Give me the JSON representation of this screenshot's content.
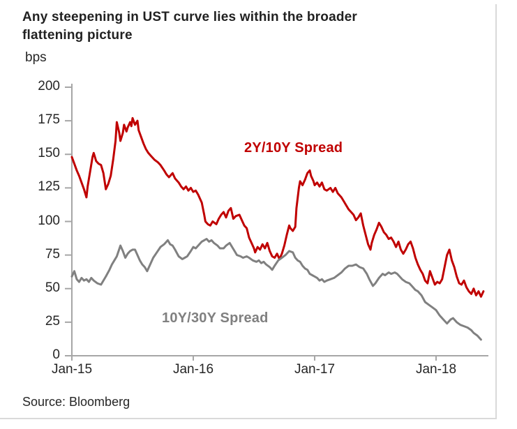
{
  "header": {
    "title_line1": "Any steepening in UST curve lies within the broader",
    "title_line2": "flattening picture"
  },
  "footer": {
    "source": "Source: Bloomberg"
  },
  "colors": {
    "red_series": "#c00000",
    "gray_series": "#808080",
    "axis": "#a6a6a6",
    "frame_border": "#d9d9d9",
    "text": "#262626"
  },
  "chart_data": {
    "type": "line",
    "title": "Any steepening in UST curve lies within the broader flattening picture",
    "xlabel": "",
    "ylabel": "bps",
    "ylim": [
      0,
      200
    ],
    "ytick_step": 25,
    "yticks": [
      "200",
      "175",
      "150",
      "125",
      "100",
      "75",
      "50",
      "25",
      "0"
    ],
    "xticks": [
      {
        "label": "Jan-15",
        "t": 0
      },
      {
        "label": "Jan-16",
        "t": 1
      },
      {
        "label": "Jan-17",
        "t": 2
      },
      {
        "label": "Jan-18",
        "t": 3
      }
    ],
    "x_unit": "years since Jan-2015",
    "xlim": [
      0,
      3.45
    ],
    "grid": false,
    "legend_position": "inline-annotations",
    "series": [
      {
        "name": "2Y/10Y Spread",
        "color": "#c00000",
        "points": [
          [
            0,
            148
          ],
          [
            0.02,
            143
          ],
          [
            0.04,
            138
          ],
          [
            0.06,
            134
          ],
          [
            0.08,
            129
          ],
          [
            0.1,
            124
          ],
          [
            0.12,
            118
          ],
          [
            0.13,
            126
          ],
          [
            0.15,
            137
          ],
          [
            0.17,
            148
          ],
          [
            0.18,
            151
          ],
          [
            0.2,
            145
          ],
          [
            0.22,
            143
          ],
          [
            0.24,
            142
          ],
          [
            0.26,
            136
          ],
          [
            0.28,
            124
          ],
          [
            0.3,
            128
          ],
          [
            0.32,
            134
          ],
          [
            0.34,
            146
          ],
          [
            0.36,
            160
          ],
          [
            0.37,
            174
          ],
          [
            0.39,
            166
          ],
          [
            0.4,
            160
          ],
          [
            0.42,
            166
          ],
          [
            0.43,
            172
          ],
          [
            0.45,
            167
          ],
          [
            0.46,
            170
          ],
          [
            0.48,
            174
          ],
          [
            0.49,
            171
          ],
          [
            0.5,
            177
          ],
          [
            0.52,
            172
          ],
          [
            0.54,
            175
          ],
          [
            0.55,
            168
          ],
          [
            0.57,
            163
          ],
          [
            0.59,
            158
          ],
          [
            0.61,
            154
          ],
          [
            0.63,
            151
          ],
          [
            0.65,
            149
          ],
          [
            0.68,
            146
          ],
          [
            0.71,
            144
          ],
          [
            0.73,
            142
          ],
          [
            0.76,
            138
          ],
          [
            0.78,
            135
          ],
          [
            0.8,
            133
          ],
          [
            0.83,
            136
          ],
          [
            0.85,
            132
          ],
          [
            0.88,
            129
          ],
          [
            0.9,
            126
          ],
          [
            0.92,
            124
          ],
          [
            0.94,
            126
          ],
          [
            0.96,
            123
          ],
          [
            0.98,
            125
          ],
          [
            1,
            122
          ],
          [
            1.02,
            123
          ],
          [
            1.04,
            120
          ],
          [
            1.07,
            114
          ],
          [
            1.09,
            105
          ],
          [
            1.1,
            100
          ],
          [
            1.12,
            98
          ],
          [
            1.14,
            97
          ],
          [
            1.16,
            100
          ],
          [
            1.19,
            98
          ],
          [
            1.21,
            102
          ],
          [
            1.23,
            105
          ],
          [
            1.25,
            107
          ],
          [
            1.27,
            103
          ],
          [
            1.29,
            108
          ],
          [
            1.31,
            110
          ],
          [
            1.33,
            102
          ],
          [
            1.35,
            104
          ],
          [
            1.38,
            105
          ],
          [
            1.4,
            101
          ],
          [
            1.42,
            97
          ],
          [
            1.44,
            95
          ],
          [
            1.46,
            88
          ],
          [
            1.48,
            84
          ],
          [
            1.5,
            80
          ],
          [
            1.51,
            77
          ],
          [
            1.53,
            81
          ],
          [
            1.55,
            79
          ],
          [
            1.57,
            83
          ],
          [
            1.59,
            80
          ],
          [
            1.61,
            84
          ],
          [
            1.63,
            78
          ],
          [
            1.65,
            74
          ],
          [
            1.67,
            73
          ],
          [
            1.69,
            76
          ],
          [
            1.71,
            72
          ],
          [
            1.73,
            76
          ],
          [
            1.75,
            82
          ],
          [
            1.77,
            90
          ],
          [
            1.79,
            97
          ],
          [
            1.8,
            95
          ],
          [
            1.82,
            93
          ],
          [
            1.84,
            96
          ],
          [
            1.85,
            110
          ],
          [
            1.87,
            125
          ],
          [
            1.88,
            130
          ],
          [
            1.9,
            127
          ],
          [
            1.92,
            131
          ],
          [
            1.94,
            136
          ],
          [
            1.96,
            138
          ],
          [
            1.97,
            134
          ],
          [
            1.99,
            130
          ],
          [
            2,
            127
          ],
          [
            2.02,
            129
          ],
          [
            2.04,
            126
          ],
          [
            2.06,
            129
          ],
          [
            2.08,
            124
          ],
          [
            2.1,
            123
          ],
          [
            2.13,
            125
          ],
          [
            2.15,
            122
          ],
          [
            2.17,
            125
          ],
          [
            2.19,
            121
          ],
          [
            2.22,
            118
          ],
          [
            2.24,
            115
          ],
          [
            2.26,
            112
          ],
          [
            2.28,
            109
          ],
          [
            2.3,
            107
          ],
          [
            2.32,
            105
          ],
          [
            2.34,
            101
          ],
          [
            2.36,
            103
          ],
          [
            2.38,
            106
          ],
          [
            2.4,
            97
          ],
          [
            2.42,
            90
          ],
          [
            2.44,
            83
          ],
          [
            2.46,
            79
          ],
          [
            2.47,
            84
          ],
          [
            2.49,
            90
          ],
          [
            2.51,
            94
          ],
          [
            2.53,
            99
          ],
          [
            2.55,
            96
          ],
          [
            2.57,
            92
          ],
          [
            2.59,
            90
          ],
          [
            2.61,
            87
          ],
          [
            2.63,
            88
          ],
          [
            2.65,
            85
          ],
          [
            2.67,
            81
          ],
          [
            2.69,
            85
          ],
          [
            2.71,
            79
          ],
          [
            2.73,
            76
          ],
          [
            2.75,
            79
          ],
          [
            2.77,
            83
          ],
          [
            2.79,
            85
          ],
          [
            2.81,
            80
          ],
          [
            2.83,
            73
          ],
          [
            2.85,
            68
          ],
          [
            2.87,
            64
          ],
          [
            2.89,
            61
          ],
          [
            2.91,
            56
          ],
          [
            2.93,
            54
          ],
          [
            2.95,
            63
          ],
          [
            2.97,
            58
          ],
          [
            2.99,
            53
          ],
          [
            3.01,
            55
          ],
          [
            3.03,
            54
          ],
          [
            3.05,
            57
          ],
          [
            3.07,
            66
          ],
          [
            3.09,
            75
          ],
          [
            3.11,
            79
          ],
          [
            3.13,
            71
          ],
          [
            3.15,
            66
          ],
          [
            3.17,
            59
          ],
          [
            3.19,
            54
          ],
          [
            3.21,
            53
          ],
          [
            3.23,
            56
          ],
          [
            3.25,
            51
          ],
          [
            3.27,
            48
          ],
          [
            3.29,
            46
          ],
          [
            3.31,
            50
          ],
          [
            3.33,
            45
          ],
          [
            3.35,
            48
          ],
          [
            3.37,
            44
          ],
          [
            3.39,
            48
          ]
        ]
      },
      {
        "name": "10Y/30Y Spread",
        "color": "#808080",
        "points": [
          [
            0,
            59
          ],
          [
            0.02,
            63
          ],
          [
            0.04,
            57
          ],
          [
            0.06,
            55
          ],
          [
            0.08,
            58
          ],
          [
            0.1,
            56
          ],
          [
            0.12,
            57
          ],
          [
            0.14,
            55
          ],
          [
            0.16,
            58
          ],
          [
            0.18,
            56
          ],
          [
            0.21,
            54
          ],
          [
            0.24,
            53
          ],
          [
            0.26,
            56
          ],
          [
            0.28,
            59
          ],
          [
            0.31,
            64
          ],
          [
            0.33,
            68
          ],
          [
            0.35,
            71
          ],
          [
            0.37,
            74
          ],
          [
            0.4,
            82
          ],
          [
            0.42,
            78
          ],
          [
            0.44,
            73
          ],
          [
            0.46,
            76
          ],
          [
            0.48,
            78
          ],
          [
            0.5,
            79
          ],
          [
            0.52,
            79
          ],
          [
            0.54,
            75
          ],
          [
            0.56,
            71
          ],
          [
            0.58,
            68
          ],
          [
            0.6,
            66
          ],
          [
            0.62,
            63
          ],
          [
            0.64,
            67
          ],
          [
            0.67,
            73
          ],
          [
            0.7,
            77
          ],
          [
            0.73,
            81
          ],
          [
            0.76,
            83
          ],
          [
            0.79,
            86
          ],
          [
            0.81,
            83
          ],
          [
            0.83,
            82
          ],
          [
            0.85,
            79
          ],
          [
            0.88,
            74
          ],
          [
            0.91,
            72
          ],
          [
            0.93,
            73
          ],
          [
            0.95,
            74
          ],
          [
            0.98,
            78
          ],
          [
            1,
            81
          ],
          [
            1.02,
            80
          ],
          [
            1.05,
            83
          ],
          [
            1.07,
            85
          ],
          [
            1.09,
            86
          ],
          [
            1.11,
            87
          ],
          [
            1.13,
            85
          ],
          [
            1.15,
            86
          ],
          [
            1.17,
            84
          ],
          [
            1.2,
            82
          ],
          [
            1.22,
            80
          ],
          [
            1.25,
            80
          ],
          [
            1.27,
            82
          ],
          [
            1.3,
            84
          ],
          [
            1.32,
            81
          ],
          [
            1.34,
            78
          ],
          [
            1.36,
            75
          ],
          [
            1.39,
            74
          ],
          [
            1.41,
            73
          ],
          [
            1.44,
            74
          ],
          [
            1.46,
            73
          ],
          [
            1.49,
            71
          ],
          [
            1.52,
            70
          ],
          [
            1.54,
            71
          ],
          [
            1.56,
            69
          ],
          [
            1.58,
            70
          ],
          [
            1.6,
            68
          ],
          [
            1.63,
            66
          ],
          [
            1.65,
            64
          ],
          [
            1.67,
            67
          ],
          [
            1.7,
            71
          ],
          [
            1.73,
            73
          ],
          [
            1.76,
            75
          ],
          [
            1.79,
            78
          ],
          [
            1.82,
            77
          ],
          [
            1.84,
            73
          ],
          [
            1.86,
            71
          ],
          [
            1.88,
            70
          ],
          [
            1.9,
            67
          ],
          [
            1.92,
            65
          ],
          [
            1.94,
            64
          ],
          [
            1.96,
            61
          ],
          [
            1.98,
            60
          ],
          [
            2,
            59
          ],
          [
            2.02,
            58
          ],
          [
            2.04,
            56
          ],
          [
            2.06,
            57
          ],
          [
            2.08,
            55
          ],
          [
            2.1,
            56
          ],
          [
            2.13,
            57
          ],
          [
            2.16,
            58
          ],
          [
            2.19,
            60
          ],
          [
            2.22,
            62
          ],
          [
            2.25,
            65
          ],
          [
            2.28,
            67
          ],
          [
            2.31,
            67
          ],
          [
            2.34,
            68
          ],
          [
            2.37,
            66
          ],
          [
            2.4,
            65
          ],
          [
            2.43,
            61
          ],
          [
            2.45,
            57
          ],
          [
            2.48,
            52
          ],
          [
            2.5,
            54
          ],
          [
            2.53,
            58
          ],
          [
            2.56,
            61
          ],
          [
            2.58,
            60
          ],
          [
            2.61,
            62
          ],
          [
            2.63,
            61
          ],
          [
            2.66,
            62
          ],
          [
            2.68,
            61
          ],
          [
            2.7,
            59
          ],
          [
            2.72,
            57
          ],
          [
            2.75,
            55
          ],
          [
            2.78,
            54
          ],
          [
            2.8,
            52
          ],
          [
            2.83,
            49
          ],
          [
            2.85,
            48
          ],
          [
            2.88,
            45
          ],
          [
            2.91,
            40
          ],
          [
            2.94,
            38
          ],
          [
            2.97,
            36
          ],
          [
            3,
            34
          ],
          [
            3.03,
            30
          ],
          [
            3.06,
            27
          ],
          [
            3.09,
            24
          ],
          [
            3.12,
            27
          ],
          [
            3.14,
            28
          ],
          [
            3.17,
            25
          ],
          [
            3.2,
            23
          ],
          [
            3.23,
            22
          ],
          [
            3.26,
            21
          ],
          [
            3.29,
            19
          ],
          [
            3.31,
            17
          ],
          [
            3.34,
            15
          ],
          [
            3.37,
            12
          ]
        ]
      }
    ]
  }
}
